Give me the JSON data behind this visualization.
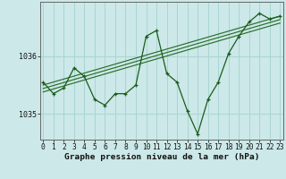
{
  "x": [
    0,
    1,
    2,
    3,
    4,
    5,
    6,
    7,
    8,
    9,
    10,
    11,
    12,
    13,
    14,
    15,
    16,
    17,
    18,
    19,
    20,
    21,
    22,
    23
  ],
  "y_main": [
    1035.55,
    1035.35,
    1035.45,
    1035.8,
    1035.65,
    1035.25,
    1035.15,
    1035.35,
    1035.35,
    1035.5,
    1036.35,
    1036.45,
    1035.7,
    1035.55,
    1035.05,
    1034.65,
    1035.25,
    1035.55,
    1036.05,
    1036.35,
    1036.6,
    1036.75,
    1036.65,
    1036.7
  ],
  "trend_lines": [
    {
      "x0": 0,
      "y0": 1035.38,
      "x1": 23,
      "y1": 1036.58
    },
    {
      "x0": 0,
      "y0": 1035.44,
      "x1": 23,
      "y1": 1036.64
    },
    {
      "x0": 0,
      "y0": 1035.5,
      "x1": 23,
      "y1": 1036.7
    }
  ],
  "ylim": [
    1034.55,
    1036.95
  ],
  "yticks": [
    1035.0,
    1036.0
  ],
  "xticks": [
    0,
    1,
    2,
    3,
    4,
    5,
    6,
    7,
    8,
    9,
    10,
    11,
    12,
    13,
    14,
    15,
    16,
    17,
    18,
    19,
    20,
    21,
    22,
    23
  ],
  "line_color": "#1a5c1a",
  "trend_color": "#2a6e2a",
  "bg_color": "#cce8e8",
  "grid_color": "#aad4d4",
  "xlabel": "Graphe pression niveau de la mer (hPa)",
  "xlabel_fontsize": 6.8,
  "tick_fontsize": 6.0,
  "marker": "+",
  "marker_size": 3.5,
  "linewidth": 0.9
}
